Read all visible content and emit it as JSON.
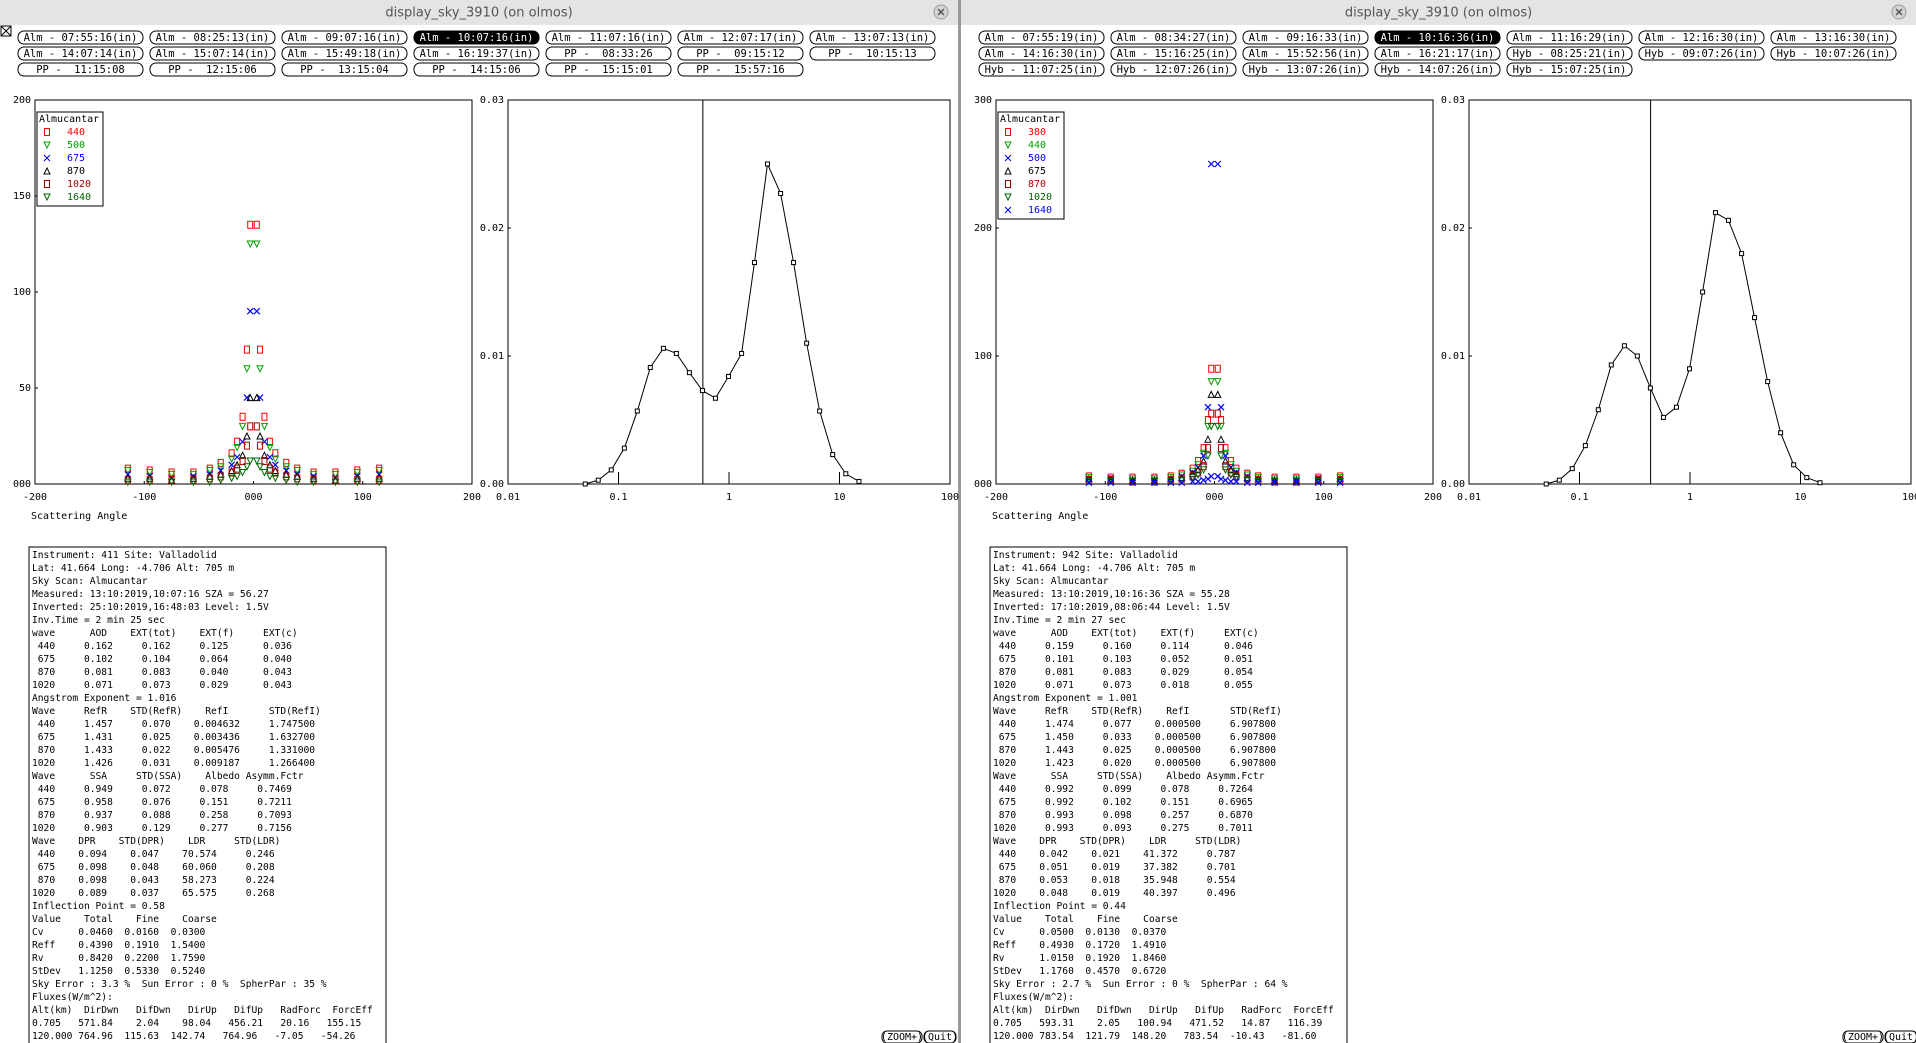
{
  "windows": [
    {
      "title": "display_sky_3910 (on olmos)",
      "buttons": [
        [
          "Alm - 07:55:16(in)",
          "Alm - 08:25:13(in)",
          "Alm - 09:07:16(in)",
          "Alm - 10:07:16(in)",
          "Alm - 11:07:16(in)",
          "Alm - 12:07:17(in)",
          "Alm - 13:07:13(in)"
        ],
        [
          "Alm - 14:07:14(in)",
          "Alm - 15:07:14(in)",
          "Alm - 15:49:18(in)",
          "Alm - 16:19:37(in)",
          "PP -  08:33:26",
          "PP -  09:15:12",
          "PP -  10:15:13"
        ],
        [
          "PP -  11:15:08",
          "PP -  12:15:06",
          "PP -  13:15:04",
          "PP -  14:15:06",
          "PP -  15:15:01",
          "PP -  15:57:16"
        ]
      ],
      "selected": [
        0,
        3
      ],
      "charts": [
        {
          "type": "scatter",
          "legend_title": "Almucantar",
          "x": [
            -115,
            -95,
            -75,
            -55,
            -40,
            -30,
            -20,
            -15,
            -10,
            -6,
            -3,
            3,
            6,
            10,
            15,
            20,
            30,
            40,
            55,
            75,
            95,
            115
          ],
          "series": [
            {
              "name": "440",
              "color": "#ff0000",
              "marker": "square",
              "values": [
                8,
                7,
                6,
                6,
                8,
                11,
                16,
                22,
                35,
                70,
                135,
                135,
                70,
                35,
                22,
                16,
                11,
                8,
                6,
                6,
                7,
                8
              ]
            },
            {
              "name": "500",
              "color": "#00a000",
              "marker": "triangle-down",
              "values": [
                7,
                6,
                5,
                5,
                7,
                9,
                13,
                19,
                30,
                60,
                125,
                125,
                60,
                30,
                19,
                13,
                9,
                7,
                5,
                5,
                6,
                7
              ]
            },
            {
              "name": "675",
              "color": "#0000ff",
              "marker": "x",
              "values": [
                5,
                4,
                3,
                4,
                5,
                7,
                10,
                14,
                22,
                45,
                90,
                90,
                45,
                22,
                14,
                10,
                7,
                5,
                4,
                3,
                4,
                5
              ]
            },
            {
              "name": "870",
              "color": "#000000",
              "marker": "triangle-up",
              "values": [
                3,
                3,
                2,
                3,
                4,
                5,
                7,
                10,
                15,
                25,
                45,
                45,
                25,
                15,
                10,
                7,
                5,
                4,
                3,
                2,
                3,
                3
              ]
            },
            {
              "name": "1020",
              "color": "#b00000",
              "marker": "square",
              "values": [
                2,
                2,
                2,
                2,
                3,
                4,
                6,
                8,
                12,
                20,
                30,
                30,
                20,
                12,
                8,
                6,
                4,
                3,
                2,
                2,
                2,
                2
              ]
            },
            {
              "name": "1640",
              "color": "#006400",
              "marker": "triangle-down",
              "values": [
                1,
                1,
                1,
                1,
                1,
                2,
                3,
                4,
                6,
                9,
                12,
                12,
                9,
                6,
                4,
                3,
                2,
                1,
                1,
                1,
                1,
                1
              ]
            }
          ],
          "xlim": [
            -200,
            200
          ],
          "xticks": [
            -200,
            -100,
            {
              "value": 0,
              "label": "000"
            },
            100,
            200
          ],
          "ylim": [
            0,
            200
          ],
          "yticks": [
            {
              "value": 0,
              "label": "000"
            },
            50,
            100,
            150,
            200
          ]
        },
        {
          "type": "line",
          "log_x": true,
          "x": [
            0.05,
            0.0656,
            0.086,
            0.113,
            0.148,
            0.194,
            0.255,
            0.334,
            0.438,
            0.575,
            0.754,
            0.99,
            1.3,
            1.7,
            2.23,
            2.93,
            3.84,
            5.04,
            6.61,
            8.67,
            11.4,
            15
          ],
          "series": [
            {
              "color": "#000000",
              "values": [
                0.0,
                0.0003,
                0.0011,
                0.0028,
                0.0057,
                0.0091,
                0.0106,
                0.0102,
                0.0087,
                0.0073,
                0.0067,
                0.0084,
                0.0102,
                0.0173,
                0.025,
                0.0227,
                0.0173,
                0.011,
                0.0057,
                0.0023,
                0.0008,
                0.0002
              ]
            }
          ],
          "vline": 0.58,
          "xlim": [
            0.01,
            100
          ],
          "xticks": [
            0.01,
            0.1,
            1,
            10,
            100
          ],
          "ylim": [
            0,
            0.03
          ],
          "yticks": [
            {
              "value": 0,
              "label": "0.00"
            },
            0.01,
            0.02,
            0.03
          ]
        }
      ],
      "x_label": "Scattering Angle",
      "info": [
        "Instrument: 411 Site: Valladolid",
        "Lat: 41.664 Long: -4.706 Alt: 705 m",
        "Sky Scan: Almucantar",
        "Measured: 13:10:2019,10:07:16 SZA = 56.27",
        "Inverted: 25:10:2019,16:48:03 Level: 1.5V",
        "Inv.Time = 2 min 25 sec",
        "wave      AOD    EXT(tot)    EXT(f)     EXT(c)",
        " 440     0.162     0.162     0.125      0.036",
        " 675     0.102     0.104     0.064      0.040",
        " 870     0.081     0.083     0.040      0.043",
        "1020     0.071     0.073     0.029      0.043",
        "Angstrom Exponent = 1.016",
        "Wave     RefR    STD(RefR)    RefI       STD(RefI)",
        " 440     1.457     0.070    0.004632     1.747500",
        " 675     1.431     0.025    0.003436     1.632700",
        " 870     1.433     0.022    0.005476     1.331000",
        "1020     1.426     0.031    0.009187     1.266400",
        "Wave      SSA     STD(SSA)    Albedo Asymm.Fctr",
        " 440     0.949     0.072     0.078     0.7469",
        " 675     0.958     0.076     0.151     0.7211",
        " 870     0.937     0.088     0.258     0.7093",
        "1020     0.903     0.129     0.277     0.7156",
        "Wave    DPR    STD(DPR)    LDR     STD(LDR)",
        " 440    0.094    0.047    70.574     0.246",
        " 675    0.098    0.048    60.060     0.208",
        " 870    0.098    0.043    58.273     0.224",
        "1020    0.089    0.037    65.575     0.268",
        "Inflection Point = 0.58",
        "Value    Total    Fine    Coarse",
        "Cv      0.0460  0.0160  0.0300",
        "Reff    0.4390  0.1910  1.5400",
        "Rv      0.8420  0.2200  1.7590",
        "StDev   1.1250  0.5330  0.5240",
        "Sky Error : 3.3 %  Sun Error : 0 %  SpherPar : 35 %",
        "Fluxes(W/m^2):",
        "Alt(km)  DirDwn   DifDwn   DirUp   DifUp   RadForc  ForcEff",
        "0.705   571.84    2.04    98.04   456.21   20.16   155.15",
        "120.000 764.96  115.63  142.74   764.96   -7.05   -54.26"
      ],
      "zoom": "(ZOOM+)",
      "quit": "(Quit)"
    },
    {
      "title": "display_sky_3910 (on olmos)",
      "buttons": [
        [
          "Alm - 07:55:19(in)",
          "Alm - 08:34:27(in)",
          "Alm - 09:16:33(in)",
          "Alm - 10:16:36(in)",
          "Alm - 11:16:29(in)",
          "Alm - 12:16:30(in)",
          "Alm - 13:16:30(in)"
        ],
        [
          "Alm - 14:16:30(in)",
          "Alm - 15:16:25(in)",
          "Alm - 15:52:56(in)",
          "Alm - 16:21:17(in)",
          "Hyb - 08:25:21(in)",
          "Hyb - 09:07:26(in)",
          "Hyb - 10:07:26(in)"
        ],
        [
          "Hyb - 11:07:25(in)",
          "Hyb - 12:07:26(in)",
          "Hyb - 13:07:26(in)",
          "Hyb - 14:07:26(in)",
          "Hyb - 15:07:25(in)"
        ]
      ],
      "selected": [
        0,
        3
      ],
      "charts": [
        {
          "type": "scatter",
          "legend_title": "Almucantar",
          "x": [
            -115,
            -95,
            -75,
            -55,
            -40,
            -30,
            -20,
            -15,
            -10,
            -6,
            -3,
            3,
            6,
            10,
            15,
            20,
            30,
            40,
            55,
            75,
            95,
            115
          ],
          "series": [
            {
              "name": "380",
              "color": "#ff0000",
              "marker": "square",
              "values": [
                6,
                5,
                5,
                5,
                6,
                8,
                12,
                18,
                28,
                50,
                90,
                90,
                50,
                28,
                18,
                12,
                8,
                6,
                5,
                5,
                5,
                6
              ]
            },
            {
              "name": "440",
              "color": "#00a000",
              "marker": "triangle-down",
              "values": [
                5,
                4,
                4,
                4,
                5,
                7,
                10,
                15,
                24,
                45,
                80,
                80,
                45,
                24,
                15,
                10,
                7,
                5,
                4,
                4,
                4,
                5
              ]
            },
            {
              "name": "500",
              "color": "#0000ff",
              "marker": "x",
              "values": [
                4,
                4,
                3,
                3,
                4,
                6,
                9,
                13,
                22,
                60,
                250,
                250,
                60,
                22,
                13,
                9,
                6,
                4,
                3,
                3,
                4,
                4
              ]
            },
            {
              "name": "675",
              "color": "#000000",
              "marker": "triangle-up",
              "values": [
                4,
                3,
                3,
                3,
                4,
                5,
                8,
                11,
                18,
                35,
                70,
                70,
                35,
                18,
                11,
                8,
                5,
                4,
                3,
                3,
                3,
                4
              ]
            },
            {
              "name": "870",
              "color": "#b00000",
              "marker": "square",
              "values": [
                3,
                3,
                2,
                2,
                3,
                4,
                6,
                9,
                14,
                28,
                55,
                55,
                28,
                14,
                9,
                6,
                4,
                3,
                2,
                2,
                3,
                3
              ]
            },
            {
              "name": "1020",
              "color": "#006400",
              "marker": "triangle-down",
              "values": [
                2,
                2,
                2,
                2,
                2,
                3,
                5,
                7,
                11,
                22,
                45,
                45,
                22,
                11,
                7,
                5,
                3,
                2,
                2,
                2,
                2,
                2
              ]
            },
            {
              "name": "1640",
              "color": "#0000ff",
              "marker": "x",
              "values": [
                1,
                1,
                1,
                1,
                1,
                1,
                2,
                2,
                3,
                4,
                6,
                6,
                4,
                3,
                2,
                2,
                1,
                1,
                1,
                1,
                1,
                1
              ]
            }
          ],
          "xlim": [
            -200,
            200
          ],
          "xticks": [
            -200,
            -100,
            {
              "value": 0,
              "label": "000"
            },
            100,
            200
          ],
          "ylim": [
            0,
            300
          ],
          "yticks": [
            {
              "value": 0,
              "label": "000"
            },
            100,
            200,
            300
          ]
        },
        {
          "type": "line",
          "log_x": true,
          "x": [
            0.05,
            0.0656,
            0.086,
            0.113,
            0.148,
            0.194,
            0.255,
            0.334,
            0.438,
            0.575,
            0.754,
            0.99,
            1.3,
            1.7,
            2.23,
            2.93,
            3.84,
            5.04,
            6.61,
            8.67,
            11.4,
            15
          ],
          "series": [
            {
              "color": "#000000",
              "values": [
                0.0,
                0.0003,
                0.0012,
                0.003,
                0.0058,
                0.0093,
                0.0108,
                0.01,
                0.0075,
                0.0052,
                0.006,
                0.009,
                0.015,
                0.0212,
                0.0206,
                0.018,
                0.013,
                0.008,
                0.004,
                0.0015,
                0.0005,
                0.0001
              ]
            }
          ],
          "vline": 0.44,
          "xlim": [
            0.01,
            100
          ],
          "xticks": [
            0.01,
            0.1,
            1,
            10,
            100
          ],
          "ylim": [
            0,
            0.03
          ],
          "yticks": [
            {
              "value": 0,
              "label": "0.00"
            },
            0.01,
            0.02,
            0.03
          ]
        }
      ],
      "x_label": "Scattering Angle",
      "info": [
        "Instrument: 942 Site: Valladolid",
        "Lat: 41.664 Long: -4.706 Alt: 705 m",
        "Sky Scan: Almucantar",
        "Measured: 13:10:2019,10:16:36 SZA = 55.28",
        "Inverted: 17:10:2019,08:06:44 Level: 1.5V",
        "Inv.Time = 2 min 27 sec",
        "wave      AOD    EXT(tot)    EXT(f)     EXT(c)",
        " 440     0.159     0.160     0.114      0.046",
        " 675     0.101     0.103     0.052      0.051",
        " 870     0.081     0.083     0.029      0.054",
        "1020     0.071     0.073     0.018      0.055",
        "Angstrom Exponent = 1.001",
        "Wave     RefR    STD(RefR)    RefI       STD(RefI)",
        " 440     1.474     0.077    0.000500     6.907800",
        " 675     1.450     0.033    0.000500     6.907800",
        " 870     1.443     0.025    0.000500     6.907800",
        "1020     1.423     0.020    0.000500     6.907800",
        "Wave      SSA     STD(SSA)    Albedo Asymm.Fctr",
        " 440     0.992     0.099     0.078     0.7264",
        " 675     0.992     0.102     0.151     0.6965",
        " 870     0.993     0.098     0.257     0.6870",
        "1020     0.993     0.093     0.275     0.7011",
        "Wave    DPR    STD(DPR)    LDR     STD(LDR)",
        " 440    0.042    0.021    41.372     0.787",
        " 675    0.051    0.019    37.382     0.701",
        " 870    0.053    0.018    35.948     0.554",
        "1020    0.048    0.019    40.397     0.496",
        "Inflection Point = 0.44",
        "Value    Total    Fine    Coarse",
        "Cv      0.0500  0.0130  0.0370",
        "Reff    0.4930  0.1720  1.4910",
        "Rv      1.0150  0.1920  1.8460",
        "StDev   1.1760  0.4570  0.6720",
        "Sky Error : 2.7 %  Sun Error : 0 %  SpherPar : 64 %",
        "Fluxes(W/m^2):",
        "Alt(km)  DirDwn   DifDwn   DirUp   DifUp   RadForc  ForcEff",
        "0.705   593.31    2.05   100.94   471.52   14.87   116.39",
        "120.000 783.54  121.79  148.20   783.54  -10.43   -81.60"
      ],
      "zoom": "(ZOOM+)",
      "quit": "(Quit)"
    }
  ]
}
